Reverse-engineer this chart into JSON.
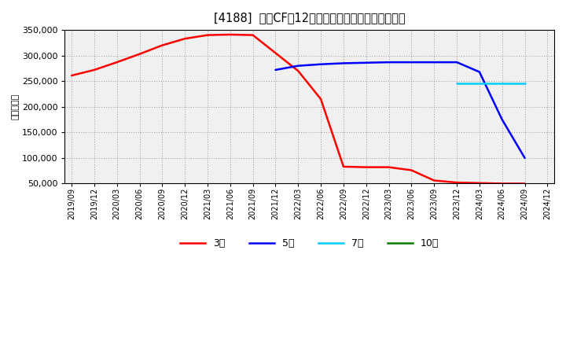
{
  "title": "[4188]  投賄CFの12か月移動合計の標準偏差の推移",
  "ylabel": "（百万円）",
  "background_color": "#ffffff",
  "plot_bg_color": "#f0f0f0",
  "ylim": [
    50000,
    350000
  ],
  "yticks": [
    50000,
    100000,
    150000,
    200000,
    250000,
    300000,
    350000
  ],
  "series": {
    "3年": {
      "color": "#ff0000",
      "x": [
        "2019/09",
        "2019/12",
        "2020/03",
        "2020/06",
        "2020/09",
        "2020/12",
        "2021/03",
        "2021/06",
        "2021/09",
        "2021/12",
        "2022/03",
        "2022/06",
        "2022/09",
        "2022/12",
        "2023/03",
        "2023/06",
        "2023/09",
        "2023/12",
        "2024/03",
        "2024/06",
        "2024/09"
      ],
      "y": [
        261000,
        272000,
        287000,
        303000,
        320000,
        333000,
        340000,
        341000,
        340000,
        305000,
        270000,
        215000,
        83000,
        82000,
        82000,
        76000,
        56000,
        52000,
        51000,
        50000,
        50000
      ]
    },
    "5年": {
      "color": "#0000ff",
      "x": [
        "2021/12",
        "2022/03",
        "2022/06",
        "2022/09",
        "2022/12",
        "2023/03",
        "2023/06",
        "2023/09",
        "2023/12",
        "2024/03",
        "2024/06",
        "2024/09"
      ],
      "y": [
        272000,
        280000,
        283000,
        285000,
        286000,
        287000,
        287000,
        287000,
        287000,
        268000,
        175000,
        100000
      ]
    },
    "7年": {
      "color": "#00ccff",
      "x": [
        "2023/12",
        "2024/03",
        "2024/06",
        "2024/09"
      ],
      "y": [
        246000,
        246000,
        246000,
        246000
      ]
    },
    "10年": {
      "color": "#008000",
      "x": [],
      "y": []
    }
  },
  "x_labels": [
    "2019/09",
    "2019/12",
    "2020/03",
    "2020/06",
    "2020/09",
    "2020/12",
    "2021/03",
    "2021/06",
    "2021/09",
    "2021/12",
    "2022/03",
    "2022/06",
    "2022/09",
    "2022/12",
    "2023/03",
    "2023/06",
    "2023/09",
    "2023/12",
    "2024/03",
    "2024/06",
    "2024/09",
    "2024/12"
  ],
  "legend_labels": [
    "3年",
    "5年",
    "7年",
    "10年"
  ],
  "legend_colors": [
    "#ff0000",
    "#0000ff",
    "#00ccff",
    "#008000"
  ]
}
